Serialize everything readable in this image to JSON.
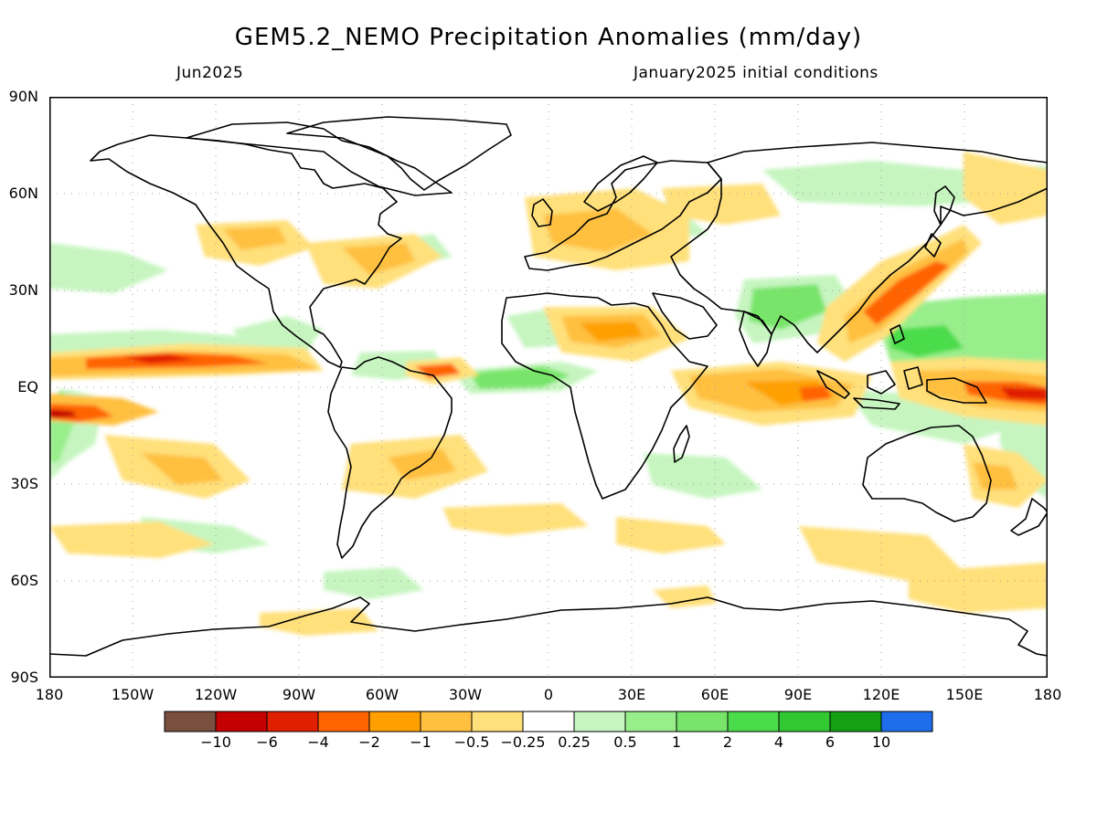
{
  "header": {
    "title": "GEM5.2_NEMO Precipitation Anomalies (mm/day)",
    "valid_month": "Jun2025",
    "init_conditions": "January2025 initial conditions"
  },
  "axes": {
    "lat_labels": [
      "90N",
      "60N",
      "30N",
      "EQ",
      "30S",
      "60S",
      "90S"
    ],
    "lon_labels": [
      "180",
      "150W",
      "120W",
      "90W",
      "60W",
      "30W",
      "0",
      "30E",
      "60E",
      "90E",
      "120E",
      "150E",
      "180"
    ]
  },
  "colorbar": {
    "colors": [
      "#7a4f3f",
      "#c40000",
      "#e01e00",
      "#ff6400",
      "#ffa000",
      "#ffc040",
      "#ffe07a",
      "#ffffff",
      "#c6f5c0",
      "#99ee8c",
      "#78e56a",
      "#4bdc4b",
      "#32c832",
      "#13a013",
      "#1e6eeb"
    ],
    "labels": [
      "−10",
      "−6",
      "−4",
      "−2",
      "−1",
      "−0.5",
      "−0.25",
      "0.25",
      "0.5",
      "1",
      "2",
      "4",
      "6",
      "10"
    ]
  }
}
